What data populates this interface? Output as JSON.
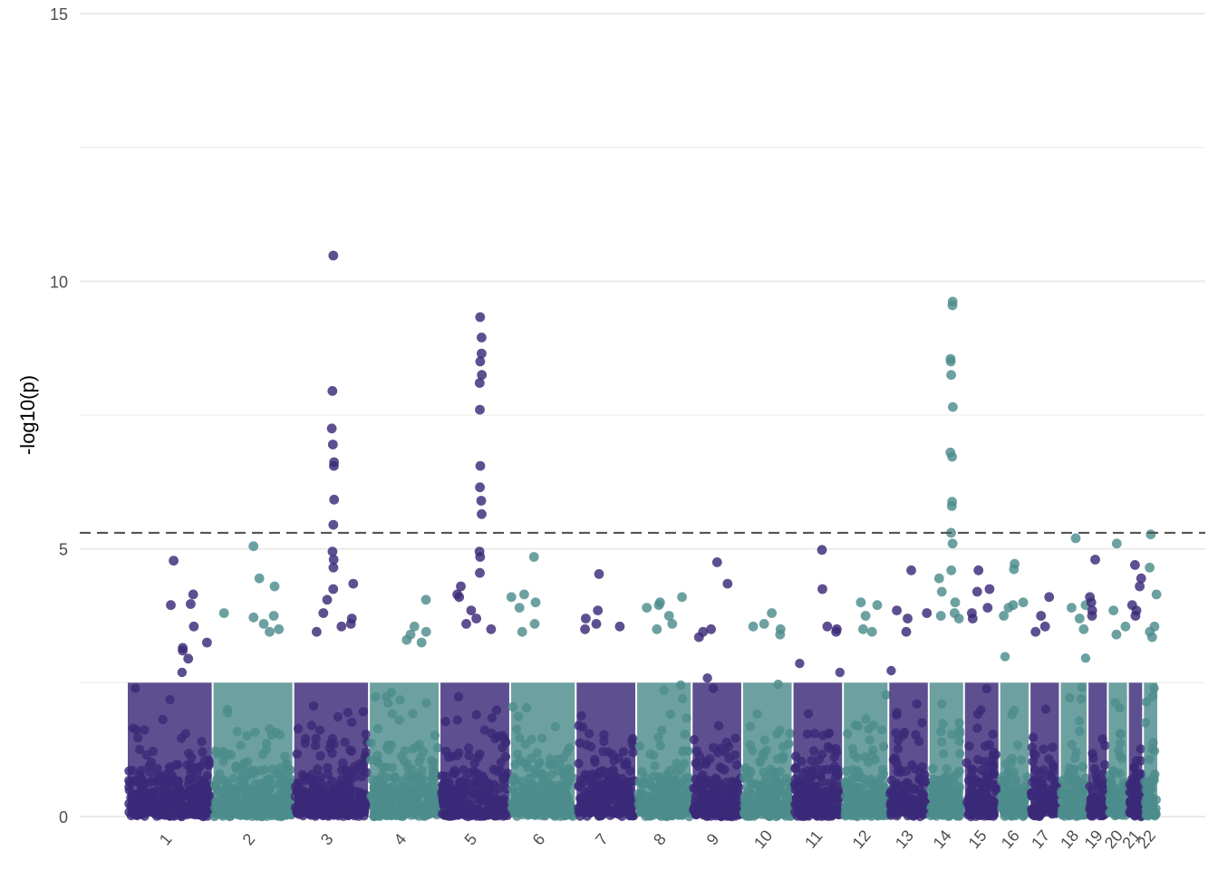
{
  "chart_data": {
    "type": "scatter",
    "title": "",
    "xlabel": "",
    "ylabel": "-log10(p)",
    "ylim": [
      0,
      15
    ],
    "y_ticks": [
      "0",
      "5",
      "10",
      "15"
    ],
    "grid": "horizontal",
    "legend": "none",
    "colors": {
      "odd_chromosomes": "#3a2a78",
      "even_chromosomes": "#4d8c8c",
      "threshold_line": "#555555",
      "grid": "#ebebeb"
    },
    "genome_wide_threshold": 5.3,
    "chromosomes": [
      {
        "label": "1",
        "span": [
          0.0,
          1.7
        ],
        "peak_points": [
          3.55,
          3.95,
          3.97,
          4.15,
          4.78,
          3.25,
          3.15,
          3.1,
          2.95
        ]
      },
      {
        "label": "2",
        "span": [
          1.7,
          3.3
        ],
        "peak_points": [
          5.05,
          4.45,
          4.3,
          3.8,
          3.75,
          3.72,
          3.6,
          3.5,
          3.45
        ]
      },
      {
        "label": "3",
        "span": [
          3.3,
          4.8
        ],
        "peak_points": [
          10.48,
          7.95,
          7.25,
          6.95,
          6.62,
          6.55,
          5.92,
          5.45,
          4.95,
          4.8,
          4.65,
          4.35,
          4.25,
          4.05,
          3.8,
          3.7,
          3.6,
          3.55,
          3.45
        ]
      },
      {
        "label": "4",
        "span": [
          4.8,
          6.2
        ],
        "peak_points": [
          4.05,
          3.55,
          3.45,
          3.4,
          3.3,
          3.25
        ]
      },
      {
        "label": "5",
        "span": [
          6.2,
          7.6
        ],
        "peak_points": [
          9.33,
          8.95,
          8.65,
          8.5,
          8.25,
          8.1,
          7.6,
          6.55,
          6.15,
          5.9,
          5.65,
          4.95,
          4.85,
          4.55,
          4.3,
          4.15,
          4.1,
          3.85,
          3.7,
          3.6,
          3.5
        ]
      },
      {
        "label": "6",
        "span": [
          7.6,
          8.9
        ],
        "peak_points": [
          4.85,
          4.15,
          4.1,
          4.0,
          3.9,
          3.6,
          3.45
        ]
      },
      {
        "label": "7",
        "span": [
          8.9,
          10.1
        ],
        "peak_points": [
          4.53,
          3.85,
          3.7,
          3.6,
          3.55,
          3.5
        ]
      },
      {
        "label": "8",
        "span": [
          10.1,
          11.2
        ],
        "peak_points": [
          4.1,
          4.0,
          3.95,
          3.9,
          3.75,
          3.6,
          3.5
        ]
      },
      {
        "label": "9",
        "span": [
          11.2,
          12.2
        ],
        "peak_points": [
          4.75,
          4.35,
          3.5,
          3.45,
          3.35
        ]
      },
      {
        "label": "10",
        "span": [
          12.2,
          13.2
        ],
        "peak_points": [
          3.8,
          3.6,
          3.55,
          3.5,
          3.4
        ]
      },
      {
        "label": "11",
        "span": [
          13.2,
          14.2
        ],
        "peak_points": [
          4.98,
          4.25,
          3.55,
          3.5,
          3.45
        ]
      },
      {
        "label": "12",
        "span": [
          14.2,
          15.1
        ],
        "peak_points": [
          4.0,
          3.95,
          3.75,
          3.5,
          3.45
        ]
      },
      {
        "label": "13",
        "span": [
          15.1,
          15.9
        ],
        "peak_points": [
          4.6,
          3.85,
          3.8,
          3.7,
          3.45
        ]
      },
      {
        "label": "14",
        "span": [
          15.9,
          16.6
        ],
        "peak_points": [
          9.62,
          9.55,
          8.55,
          8.5,
          8.25,
          7.65,
          6.8,
          6.72,
          5.88,
          5.8,
          5.3,
          5.1,
          4.6,
          4.45,
          4.2,
          4.0,
          3.8,
          3.75,
          3.7
        ]
      },
      {
        "label": "15",
        "span": [
          16.6,
          17.3
        ],
        "peak_points": [
          4.6,
          4.25,
          4.2,
          3.9,
          3.8,
          3.7
        ]
      },
      {
        "label": "16",
        "span": [
          17.3,
          17.9
        ],
        "peak_points": [
          4.72,
          4.62,
          4.0,
          3.95,
          3.9,
          3.75
        ]
      },
      {
        "label": "17",
        "span": [
          17.9,
          18.5
        ],
        "peak_points": [
          4.1,
          3.75,
          3.55,
          3.45
        ]
      },
      {
        "label": "18",
        "span": [
          18.5,
          19.05
        ],
        "peak_points": [
          5.2,
          3.95,
          3.9,
          3.7,
          3.5
        ]
      },
      {
        "label": "19",
        "span": [
          19.05,
          19.45
        ],
        "peak_points": [
          4.8,
          4.1,
          4.0,
          3.85,
          3.75
        ]
      },
      {
        "label": "20",
        "span": [
          19.45,
          19.85
        ],
        "peak_points": [
          5.1,
          3.85,
          3.55,
          3.4
        ]
      },
      {
        "label": "21",
        "span": [
          19.85,
          20.15
        ],
        "peak_points": [
          4.7,
          4.45,
          4.3,
          3.95,
          3.85,
          3.75
        ]
      },
      {
        "label": "22",
        "span": [
          20.15,
          20.45
        ],
        "peak_points": [
          5.27,
          4.65,
          4.15,
          3.55,
          3.45,
          3.35
        ]
      }
    ]
  }
}
